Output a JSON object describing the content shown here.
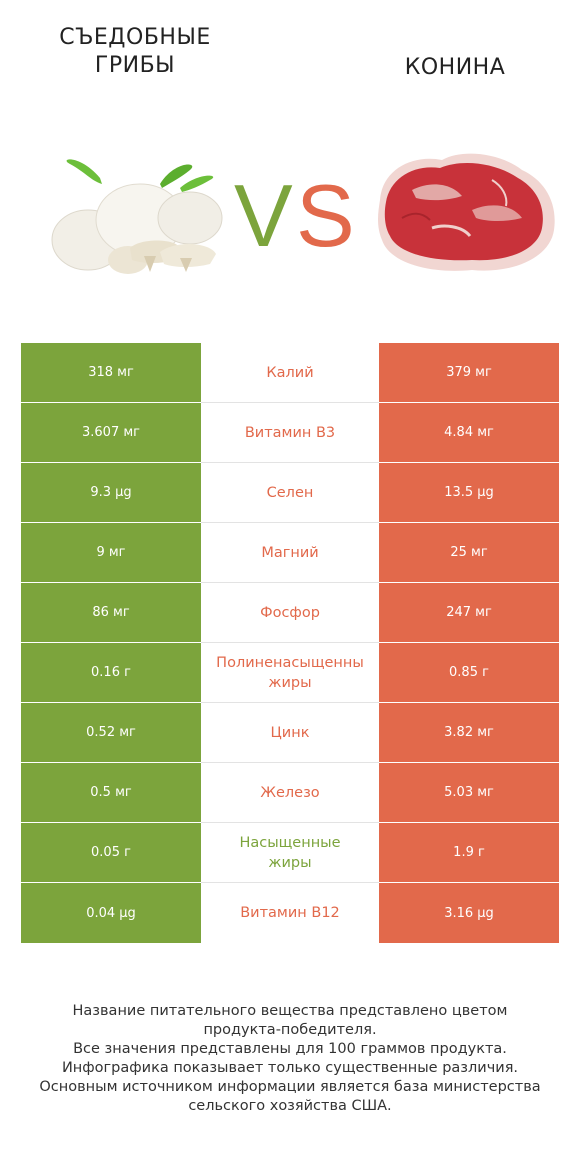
{
  "header": {
    "left_title": "СЪЕДОБНЫЕ\nГРИБЫ",
    "right_title": "КОНИНА",
    "vs_left": "V",
    "vs_right": "S"
  },
  "colors": {
    "left": "#7ca43c",
    "right": "#e2694b"
  },
  "rows": [
    {
      "nutrient": "Калий",
      "left": "318 мг",
      "right": "379 мг",
      "winner": "right"
    },
    {
      "nutrient": "Витамин B3",
      "left": "3.607 мг",
      "right": "4.84 мг",
      "winner": "right"
    },
    {
      "nutrient": "Селен",
      "left": "9.3 µg",
      "right": "13.5 µg",
      "winner": "right"
    },
    {
      "nutrient": "Магний",
      "left": "9 мг",
      "right": "25 мг",
      "winner": "right"
    },
    {
      "nutrient": "Фосфор",
      "left": "86 мг",
      "right": "247 мг",
      "winner": "right"
    },
    {
      "nutrient": "Полиненасыщенны\nжиры",
      "left": "0.16 г",
      "right": "0.85 г",
      "winner": "right"
    },
    {
      "nutrient": "Цинк",
      "left": "0.52 мг",
      "right": "3.82 мг",
      "winner": "right"
    },
    {
      "nutrient": "Железо",
      "left": "0.5 мг",
      "right": "5.03 мг",
      "winner": "right"
    },
    {
      "nutrient": "Насыщенные\nжиры",
      "left": "0.05 г",
      "right": "1.9 г",
      "winner": "left"
    },
    {
      "nutrient": "Витамин B12",
      "left": "0.04 µg",
      "right": "3.16 µg",
      "winner": "right"
    }
  ],
  "footer": [
    "Название питательного вещества представлено цветом",
    "продукта-победителя.",
    "Все значения представлены для 100 граммов продукта.",
    "Инфографика показывает только существенные различия.",
    "Основным источником информации является база министерства",
    "сельского хозяйства США."
  ]
}
